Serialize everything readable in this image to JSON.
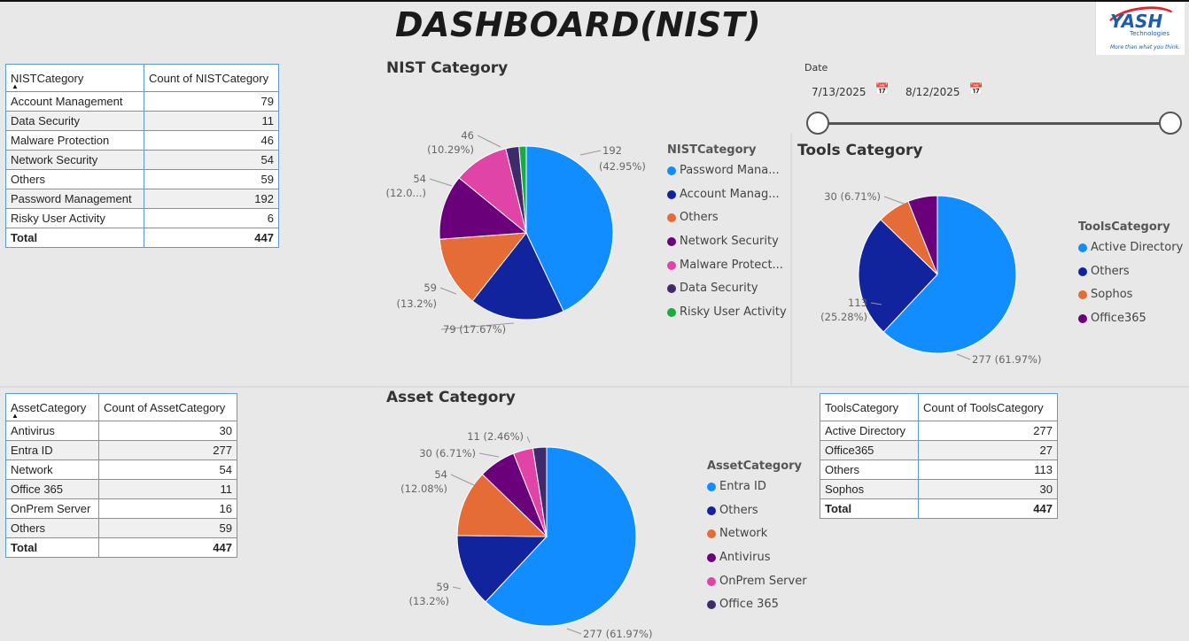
{
  "header": {
    "title": "DASHBOARD(NIST)"
  },
  "logo": {
    "brand": "YASH",
    "sub": "Technologies",
    "tagline": "More than what you think."
  },
  "colors": {
    "blue": "#118DFF",
    "navy": "#12239E",
    "orange": "#E66C37",
    "purple": "#6B007B",
    "pink": "#E044A7",
    "darkpurple": "#3F2A6B",
    "green": "#1AAB40"
  },
  "date_slicer": {
    "label": "Date",
    "start": "7/13/2025",
    "end": "8/12/2025",
    "calendar_icon": "calendar-icon"
  },
  "nist_table": {
    "col1": "NISTCategory",
    "col2": "Count of NISTCategory",
    "rows": [
      {
        "name": "Account Management",
        "count": "79"
      },
      {
        "name": "Data Security",
        "count": "11"
      },
      {
        "name": "Malware Protection",
        "count": "46"
      },
      {
        "name": "Network Security",
        "count": "54"
      },
      {
        "name": "Others",
        "count": "59"
      },
      {
        "name": "Password Management",
        "count": "192"
      },
      {
        "name": "Risky User Activity",
        "count": "6"
      }
    ],
    "total_label": "Total",
    "total": "447"
  },
  "asset_table": {
    "col1": "AssetCategory",
    "col2": "Count of AssetCategory",
    "rows": [
      {
        "name": "Antivirus",
        "count": "30"
      },
      {
        "name": "Entra ID",
        "count": "277"
      },
      {
        "name": "Network",
        "count": "54"
      },
      {
        "name": "Office 365",
        "count": "11"
      },
      {
        "name": "OnPrem Server",
        "count": "16"
      },
      {
        "name": "Others",
        "count": "59"
      }
    ],
    "total_label": "Total",
    "total": "447"
  },
  "tools_table": {
    "col1": "ToolsCategory",
    "col2": "Count of ToolsCategory",
    "rows": [
      {
        "name": "Active Directory",
        "count": "277"
      },
      {
        "name": "Office365",
        "count": "27"
      },
      {
        "name": "Others",
        "count": "113"
      },
      {
        "name": "Sophos",
        "count": "30"
      }
    ],
    "total_label": "Total",
    "total": "447"
  },
  "chart_data": [
    {
      "id": "nist",
      "type": "pie",
      "title": "NIST Category",
      "legend_title": "NISTCategory",
      "legend": [
        "Password Mana...",
        "Account Manag...",
        "Others",
        "Network Security",
        "Malware Protect...",
        "Data Security",
        "Risky User Activity"
      ],
      "slices": [
        {
          "name": "Password Management",
          "value": 192,
          "color": "#118DFF",
          "label": "192",
          "label2": "(42.95%)"
        },
        {
          "name": "Account Management",
          "value": 79,
          "color": "#12239E",
          "label": "79 (17.67%)",
          "label2": ""
        },
        {
          "name": "Others",
          "value": 59,
          "color": "#E66C37",
          "label": "59",
          "label2": "(13.2%)"
        },
        {
          "name": "Network Security",
          "value": 54,
          "color": "#6B007B",
          "label": "54",
          "label2": "(12.0...)"
        },
        {
          "name": "Malware Protection",
          "value": 46,
          "color": "#E044A7",
          "label": "46",
          "label2": "(10.29%)"
        },
        {
          "name": "Data Security",
          "value": 11,
          "color": "#3F2A6B",
          "label": "",
          "label2": ""
        },
        {
          "name": "Risky User Activity",
          "value": 6,
          "color": "#1AAB40",
          "label": "",
          "label2": ""
        }
      ]
    },
    {
      "id": "tools",
      "type": "pie",
      "title": "Tools Category",
      "legend_title": "ToolsCategory",
      "legend": [
        "Active Directory",
        "Others",
        "Sophos",
        "Office365"
      ],
      "slices": [
        {
          "name": "Active Directory",
          "value": 277,
          "color": "#118DFF",
          "label": "277 (61.97%)",
          "label2": ""
        },
        {
          "name": "Others",
          "value": 113,
          "color": "#12239E",
          "label": "113",
          "label2": "(25.28%)"
        },
        {
          "name": "Sophos",
          "value": 30,
          "color": "#E66C37",
          "label": "30 (6.71%)",
          "label2": ""
        },
        {
          "name": "Office365",
          "value": 27,
          "color": "#6B007B",
          "label": "",
          "label2": ""
        }
      ]
    },
    {
      "id": "asset",
      "type": "pie",
      "title": "Asset Category",
      "legend_title": "AssetCategory",
      "legend": [
        "Entra ID",
        "Others",
        "Network",
        "Antivirus",
        "OnPrem Server",
        "Office 365"
      ],
      "slices": [
        {
          "name": "Entra ID",
          "value": 277,
          "color": "#118DFF",
          "label": "277 (61.97%)",
          "label2": ""
        },
        {
          "name": "Others",
          "value": 59,
          "color": "#12239E",
          "label": "59",
          "label2": "(13.2%)"
        },
        {
          "name": "Network",
          "value": 54,
          "color": "#E66C37",
          "label": "54",
          "label2": "(12.08%)"
        },
        {
          "name": "Antivirus",
          "value": 30,
          "color": "#6B007B",
          "label": "30 (6.71%)",
          "label2": ""
        },
        {
          "name": "OnPrem Server",
          "value": 16,
          "color": "#E044A7",
          "label": "",
          "label2": ""
        },
        {
          "name": "Office 365",
          "value": 11,
          "color": "#3F2A6B",
          "label": "11 (2.46%)",
          "label2": ""
        }
      ]
    }
  ]
}
